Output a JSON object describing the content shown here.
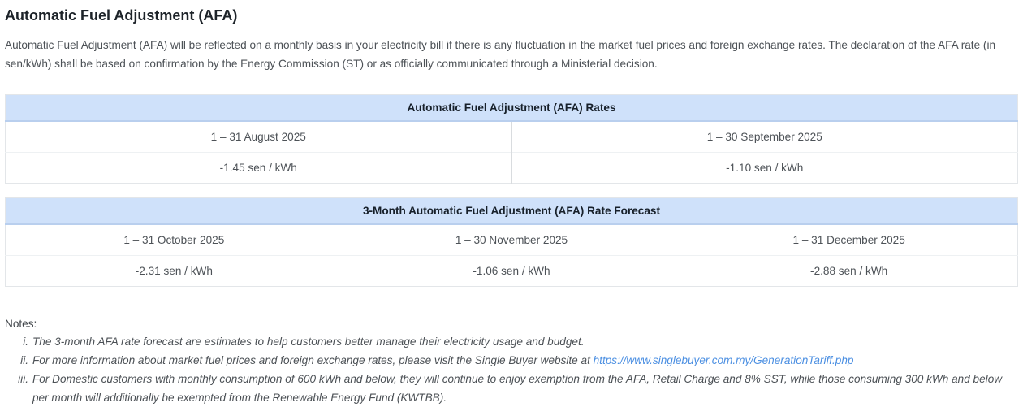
{
  "page": {
    "title": "Automatic Fuel Adjustment (AFA)",
    "intro": "Automatic Fuel Adjustment (AFA) will be reflected on a monthly basis in your electricity bill if there is any fluctuation in the market fuel prices and foreign exchange rates. The declaration of the AFA rate (in sen/kWh) shall be based on confirmation by the Energy Commission (ST) or as officially communicated through a Ministerial decision."
  },
  "rates_table": {
    "title": "Automatic Fuel Adjustment (AFA) Rates",
    "columns": [
      {
        "period": "1 – 31 August 2025",
        "rate": "-1.45 sen / kWh"
      },
      {
        "period": "1 – 30 September 2025",
        "rate": "-1.10 sen / kWh"
      }
    ]
  },
  "forecast_table": {
    "title": "3-Month Automatic Fuel Adjustment (AFA) Rate Forecast",
    "columns": [
      {
        "period": "1 – 31 October 2025",
        "rate": "-2.31 sen / kWh"
      },
      {
        "period": "1 – 30 November 2025",
        "rate": "-1.06 sen / kWh"
      },
      {
        "period": "1 – 31 December 2025",
        "rate": "-2.88 sen / kWh"
      }
    ]
  },
  "notes": {
    "label": "Notes:",
    "items": [
      {
        "marker": "i.",
        "text": "The 3-month AFA rate forecast are estimates to help customers better manage their electricity usage and budget."
      },
      {
        "marker": "ii.",
        "text_before_link": "For more information about market fuel prices and foreign exchange rates, please visit the Single Buyer website at ",
        "link": "https://www.singlebuyer.com.my/GenerationTariff.php"
      },
      {
        "marker": "iii.",
        "text": "For Domestic customers with monthly consumption of 600 kWh and below, they will continue to enjoy exemption from the AFA, Retail Charge and 8% SST, while those consuming 300 kWh and below per month will additionally be exempted from the Renewable Energy Fund (KWTBB)."
      }
    ]
  },
  "colors": {
    "table_header_bg": "#cfe1fa",
    "table_header_border": "#b9cfee",
    "link": "#4b8fe2",
    "body_text": "#4c5156",
    "heading_text": "#1d2329",
    "table_border": "#e3e6e9"
  }
}
